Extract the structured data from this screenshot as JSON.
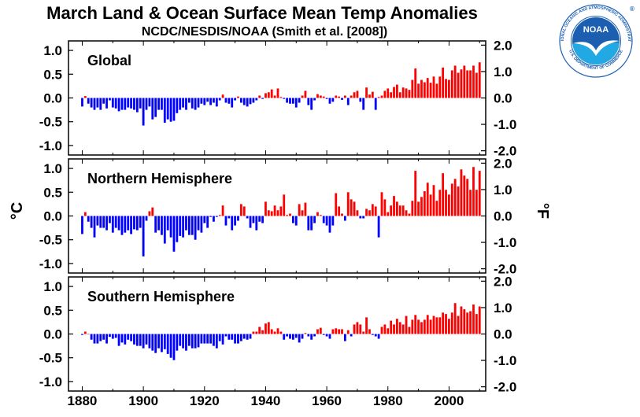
{
  "header": {
    "title": "March Land & Ocean Surface Mean Temp Anomalies",
    "subtitle": "NCDC/NESDIS/NOAA (Smith et al. [2008])"
  },
  "logo": {
    "name": "NOAA",
    "ring_text": "NATIONAL OCEANIC AND ATMOSPHERIC ADMINISTRATION",
    "ring_text_bottom": "U.S. DEPARTMENT OF COMMERCE",
    "mark": "®",
    "colors": {
      "ring": "#ffffff",
      "sky": "#1c5fb0",
      "sea": "#22a8e2",
      "bird": "#ffffff",
      "text": "#1c5fb0"
    }
  },
  "colors": {
    "positive": "#ff0000",
    "negative": "#0000ff",
    "frame": "#000000"
  },
  "chart_data": {
    "type": "bar",
    "left_axis_label": "°C",
    "right_axis_label": "°F",
    "x": [
      1880,
      1881,
      1882,
      1883,
      1884,
      1885,
      1886,
      1887,
      1888,
      1889,
      1890,
      1891,
      1892,
      1893,
      1894,
      1895,
      1896,
      1897,
      1898,
      1899,
      1900,
      1901,
      1902,
      1903,
      1904,
      1905,
      1906,
      1907,
      1908,
      1909,
      1910,
      1911,
      1912,
      1913,
      1914,
      1915,
      1916,
      1917,
      1918,
      1919,
      1920,
      1921,
      1922,
      1923,
      1924,
      1925,
      1926,
      1927,
      1928,
      1929,
      1930,
      1931,
      1932,
      1933,
      1934,
      1935,
      1936,
      1937,
      1938,
      1939,
      1940,
      1941,
      1942,
      1943,
      1944,
      1945,
      1946,
      1947,
      1948,
      1949,
      1950,
      1951,
      1952,
      1953,
      1954,
      1955,
      1956,
      1957,
      1958,
      1959,
      1960,
      1961,
      1962,
      1963,
      1964,
      1965,
      1966,
      1967,
      1968,
      1969,
      1970,
      1971,
      1972,
      1973,
      1974,
      1975,
      1976,
      1977,
      1978,
      1979,
      1980,
      1981,
      1982,
      1983,
      1984,
      1985,
      1986,
      1987,
      1988,
      1989,
      1990,
      1991,
      1992,
      1993,
      1994,
      1995,
      1996,
      1997,
      1998,
      1999,
      2000,
      2001,
      2002,
      2003,
      2004,
      2005,
      2006,
      2007,
      2008,
      2009,
      2010
    ],
    "xticks": [
      1880,
      1900,
      1920,
      1940,
      1960,
      1980,
      2000
    ],
    "xlim": [
      1875.5,
      2012
    ],
    "panels": [
      {
        "label": "Global",
        "ylim_c": [
          -1.2,
          1.2
        ],
        "yticks_c": [
          "1.0",
          "0.5",
          "0.0",
          "-0.5",
          "-1.0"
        ],
        "yticks_f": [
          "2.0",
          "1.0",
          "0.0",
          "-1.0",
          "-2.0"
        ],
        "values": [
          -0.18,
          0.04,
          -0.12,
          -0.2,
          -0.25,
          -0.2,
          -0.25,
          -0.12,
          -0.22,
          -0.05,
          -0.2,
          -0.22,
          -0.28,
          -0.25,
          -0.25,
          -0.2,
          -0.22,
          -0.25,
          -0.3,
          -0.22,
          -0.58,
          -0.25,
          -0.18,
          -0.45,
          -0.4,
          -0.25,
          -0.25,
          -0.52,
          -0.45,
          -0.5,
          -0.48,
          -0.32,
          -0.25,
          -0.2,
          -0.25,
          -0.1,
          -0.22,
          -0.25,
          -0.2,
          -0.12,
          -0.15,
          -0.08,
          -0.15,
          -0.1,
          -0.18,
          -0.05,
          0.07,
          -0.1,
          -0.12,
          -0.2,
          -0.05,
          0.03,
          -0.1,
          -0.15,
          -0.18,
          -0.13,
          -0.1,
          -0.05,
          0.05,
          -0.02,
          0.1,
          0.12,
          0.18,
          0.05,
          0.2,
          0.02,
          -0.02,
          -0.1,
          -0.12,
          -0.12,
          -0.2,
          -0.1,
          0.05,
          0.15,
          -0.15,
          -0.25,
          -0.05,
          0.08,
          0.05,
          0.03,
          -0.02,
          -0.12,
          -0.08,
          0.05,
          0.03,
          -0.04,
          0.05,
          -0.15,
          0.05,
          0.12,
          0.15,
          -0.08,
          -0.25,
          0.22,
          0.07,
          0.13,
          -0.25,
          0.02,
          0.05,
          0.15,
          0.2,
          0.12,
          0.23,
          0.28,
          0.12,
          0.22,
          0.2,
          0.17,
          0.38,
          0.62,
          0.3,
          0.38,
          0.33,
          0.42,
          0.32,
          0.45,
          0.3,
          0.45,
          0.64,
          0.4,
          0.38,
          0.58,
          0.68,
          0.53,
          0.6,
          0.68,
          0.58,
          0.58,
          0.68,
          0.53,
          0.75
        ]
      },
      {
        "label": "Northern Hemisphere",
        "ylim_c": [
          -1.2,
          1.2
        ],
        "yticks_c": [
          "1.0",
          "0.5",
          "0.0",
          "-0.5",
          "-1.0"
        ],
        "yticks_f": [
          "2.0",
          "1.0",
          "0.0",
          "-1.0",
          "-2.0"
        ],
        "values": [
          -0.38,
          0.08,
          -0.12,
          -0.25,
          -0.45,
          -0.2,
          -0.25,
          -0.25,
          -0.3,
          -0.15,
          -0.35,
          -0.25,
          -0.3,
          -0.4,
          -0.35,
          -0.3,
          -0.38,
          -0.28,
          -0.3,
          -0.25,
          -0.85,
          -0.1,
          0.1,
          0.18,
          -0.35,
          -0.3,
          -0.4,
          -0.58,
          -0.3,
          -0.45,
          -0.75,
          -0.55,
          -0.42,
          -0.45,
          -0.3,
          -0.4,
          -0.4,
          -0.5,
          -0.3,
          -0.35,
          -0.15,
          -0.25,
          -0.02,
          -0.12,
          -0.02,
          0.02,
          0.22,
          -0.2,
          -0.05,
          -0.3,
          -0.2,
          -0.1,
          0.25,
          0.2,
          -0.05,
          -0.25,
          -0.15,
          -0.3,
          -0.12,
          -0.15,
          0.3,
          0.12,
          0.1,
          0.22,
          0.12,
          0.2,
          0.45,
          0.02,
          0.05,
          -0.15,
          -0.2,
          0.25,
          0.12,
          0.28,
          -0.3,
          -0.3,
          -0.15,
          0.08,
          0.02,
          -0.15,
          -0.2,
          -0.35,
          -0.2,
          0.48,
          0.2,
          0.05,
          -0.1,
          0.5,
          0.35,
          0.3,
          0.12,
          -0.05,
          -0.05,
          0.15,
          0.12,
          0.25,
          0.2,
          -0.45,
          0.5,
          0.35,
          0.08,
          0.22,
          0.42,
          0.3,
          0.22,
          0.22,
          0.12,
          0.05,
          0.32,
          0.95,
          0.3,
          0.4,
          0.52,
          0.7,
          0.45,
          0.65,
          0.32,
          0.55,
          0.9,
          0.55,
          0.45,
          0.68,
          0.78,
          0.62,
          0.98,
          0.85,
          0.78,
          0.55,
          1.03,
          0.55,
          0.95
        ]
      },
      {
        "label": "Southern Hemisphere",
        "ylim_c": [
          -1.2,
          1.2
        ],
        "yticks_c": [
          "1.0",
          "0.5",
          "0.0",
          "-0.5",
          "-1.0"
        ],
        "yticks_f": [
          "2.0",
          "1.0",
          "0.0",
          "-1.0",
          "-2.0"
        ],
        "values": [
          -0.02,
          0.05,
          0.0,
          -0.12,
          -0.2,
          -0.2,
          -0.15,
          -0.12,
          -0.2,
          -0.06,
          -0.1,
          -0.08,
          -0.25,
          -0.18,
          -0.22,
          -0.12,
          -0.15,
          -0.22,
          -0.25,
          -0.25,
          -0.3,
          -0.22,
          -0.3,
          -0.35,
          -0.4,
          -0.3,
          -0.38,
          -0.32,
          -0.42,
          -0.5,
          -0.55,
          -0.35,
          -0.25,
          -0.3,
          -0.35,
          -0.25,
          -0.3,
          -0.3,
          -0.28,
          -0.2,
          -0.2,
          -0.2,
          -0.2,
          -0.25,
          -0.3,
          -0.15,
          -0.22,
          -0.05,
          -0.12,
          -0.12,
          -0.2,
          -0.2,
          -0.15,
          -0.1,
          -0.12,
          -0.1,
          0.05,
          0.05,
          0.15,
          0.08,
          0.22,
          0.25,
          0.1,
          0.05,
          0.12,
          0.05,
          -0.12,
          -0.05,
          -0.1,
          -0.12,
          -0.08,
          -0.18,
          -0.1,
          0.02,
          -0.05,
          -0.12,
          -0.05,
          0.1,
          0.13,
          -0.02,
          -0.05,
          -0.1,
          0.1,
          0.12,
          0.1,
          0.1,
          -0.15,
          0.08,
          -0.05,
          0.2,
          0.25,
          0.2,
          0.05,
          0.35,
          0.1,
          -0.02,
          -0.05,
          -0.1,
          0.15,
          0.2,
          0.12,
          0.28,
          0.2,
          0.32,
          0.25,
          0.2,
          0.38,
          0.15,
          0.3,
          0.4,
          0.3,
          0.25,
          0.3,
          0.4,
          0.3,
          0.38,
          0.35,
          0.35,
          0.45,
          0.42,
          0.32,
          0.45,
          0.65,
          0.38,
          0.58,
          0.52,
          0.45,
          0.48,
          0.62,
          0.42,
          0.58
        ]
      }
    ]
  }
}
